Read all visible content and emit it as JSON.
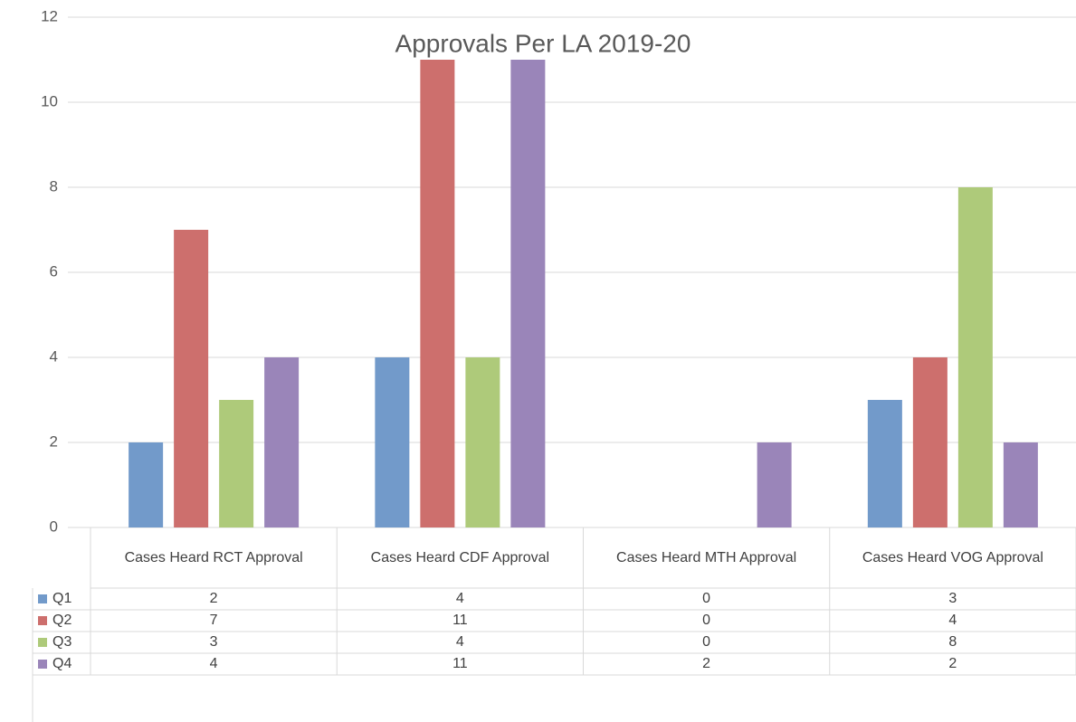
{
  "chart_data": {
    "type": "bar",
    "title": "Approvals Per LA 2019-20",
    "categories": [
      "Cases Heard RCT Approval",
      "Cases Heard CDF Approval",
      "Cases Heard MTH Approval",
      "Cases Heard VOG Approval"
    ],
    "series": [
      {
        "name": "Q1",
        "color": "#729aca",
        "values": [
          2,
          4,
          0,
          3
        ]
      },
      {
        "name": "Q2",
        "color": "#cd6f6d",
        "values": [
          7,
          11,
          0,
          4
        ]
      },
      {
        "name": "Q3",
        "color": "#aeca7a",
        "values": [
          3,
          4,
          0,
          8
        ]
      },
      {
        "name": "Q4",
        "color": "#9a85b9",
        "values": [
          4,
          11,
          2,
          2
        ]
      }
    ],
    "ylim": [
      0,
      12
    ],
    "yticks": [
      0,
      2,
      4,
      6,
      8,
      10,
      12
    ],
    "grid": true,
    "data_table": true
  }
}
